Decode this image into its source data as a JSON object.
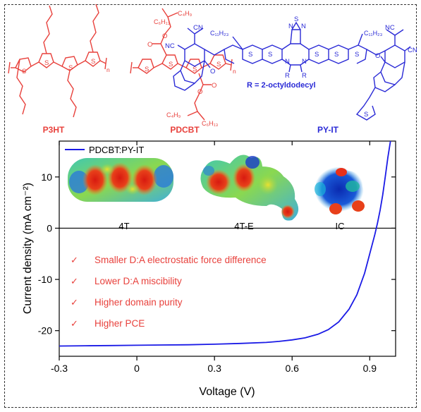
{
  "molecules": {
    "p3ht": {
      "label": "P3HT",
      "s_labels": [
        "S",
        "S",
        "S",
        "S"
      ],
      "n_label": "n",
      "color": "#e8413c"
    },
    "pdcbt": {
      "label": "PDCBT",
      "color": "#e8413c",
      "s_labels": [
        "S",
        "S",
        "S",
        "S"
      ],
      "n_label": "n",
      "o_labels": [
        "O",
        "O",
        "O",
        "O"
      ],
      "sidechain_top": [
        "C₆H₁₃",
        "C₄H₉"
      ],
      "sidechain_bottom": [
        "C₄H₉",
        "C₆H₁₃"
      ]
    },
    "pyit": {
      "label": "PY-IT",
      "color": "#2a2ad6",
      "note": "R = 2-octyldodecyl",
      "top_atoms": [
        "N",
        "S",
        "N"
      ],
      "s_labels": [
        "S",
        "S",
        "S",
        "S",
        "S"
      ],
      "n_labels": [
        "N",
        "N"
      ],
      "r_labels": [
        "R",
        "R"
      ],
      "alkyl_labels": [
        "C₁₁H₂₃",
        "C₁₁H₂₃"
      ],
      "cn_labels": [
        "CN",
        "NC",
        "NC",
        "CN"
      ],
      "o_labels": [
        "O",
        "O"
      ],
      "end_s": "S"
    }
  },
  "esp_maps": [
    {
      "label": "4T",
      "name": "4T"
    },
    {
      "label": "4T-E",
      "name": "4T-E"
    },
    {
      "label": "IC",
      "name": "IC"
    }
  ],
  "findings": [
    "Smaller D:A electrostatic force difference",
    "Lower D:A miscibility",
    "Higher domain purity",
    "Higher PCE"
  ],
  "check_mark": "✓",
  "colors": {
    "curve": "#1a1ae6",
    "finding_text": "#e8413c",
    "axis": "#000000"
  },
  "chart_data": {
    "type": "line",
    "xlabel": "Voltage (V)",
    "ylabel": "Current density (mA cm⁻²)",
    "xlim": [
      -0.3,
      1.0
    ],
    "ylim": [
      -25,
      17
    ],
    "xticks": [
      -0.3,
      0,
      0.3,
      0.6,
      0.9
    ],
    "yticks": [
      -20,
      -10,
      0,
      10
    ],
    "xtick_labels": [
      "-0.3",
      "0",
      "0.3",
      "0.6",
      "0.9"
    ],
    "ytick_labels": [
      "-20",
      "-10",
      "0",
      "10"
    ],
    "legend_position": "top-left",
    "series": [
      {
        "name": "PDCBT:PY-IT",
        "x": [
          -0.3,
          -0.2,
          -0.1,
          0.0,
          0.1,
          0.2,
          0.3,
          0.4,
          0.5,
          0.55,
          0.6,
          0.65,
          0.7,
          0.74,
          0.78,
          0.82,
          0.85,
          0.88,
          0.9,
          0.92,
          0.93,
          0.94,
          0.95,
          0.96,
          0.97,
          0.98
        ],
        "y": [
          -23.0,
          -22.95,
          -22.9,
          -22.85,
          -22.8,
          -22.75,
          -22.65,
          -22.5,
          -22.3,
          -22.1,
          -21.8,
          -21.4,
          -20.7,
          -19.8,
          -18.3,
          -15.8,
          -13.0,
          -8.8,
          -5.0,
          -1.2,
          1.0,
          3.5,
          6.5,
          10.0,
          13.8,
          18.0
        ]
      }
    ]
  }
}
